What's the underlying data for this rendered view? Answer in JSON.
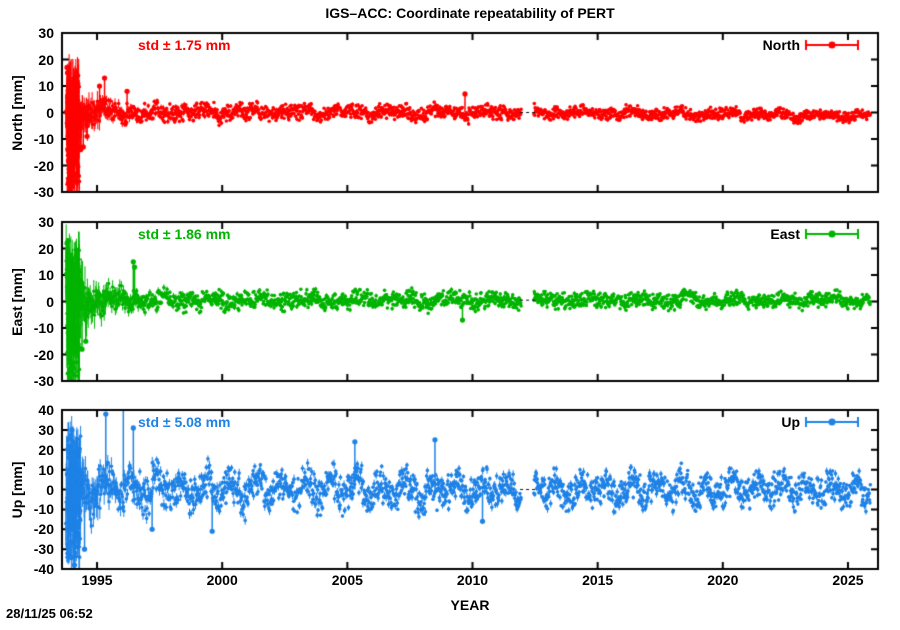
{
  "figure": {
    "title": "IGS–ACC: Coordinate repeatability of PERT",
    "timestamp": "28/11/25 06:52",
    "xlabel": "YEAR",
    "background": "#ffffff",
    "axis_color": "#000000"
  },
  "chart_data": {
    "type": "scatter",
    "title": "IGS–ACC: Coordinate repeatability of PERT",
    "xlabel": "YEAR",
    "x_range": [
      1993.6,
      2026.2
    ],
    "x_ticks": [
      1995,
      2000,
      2005,
      2010,
      2015,
      2020,
      2025
    ],
    "gap": [
      2011.95,
      2012.45
    ],
    "legend_position": "top-right-inside",
    "grid": false,
    "panels": [
      {
        "name": "North",
        "ylabel": "North [mm]",
        "std_label": "std ± 1.75 mm",
        "std_mm": 1.75,
        "color": "#ff0000",
        "ylim": [
          -30,
          30
        ],
        "y_ticks": [
          30,
          20,
          10,
          0,
          -10,
          -20,
          -30
        ],
        "mean_knots": [
          [
            1993.6,
            0
          ],
          [
            2013,
            0
          ],
          [
            2019,
            -0.6
          ],
          [
            2026.2,
            -1.2
          ]
        ],
        "spread_knots": [
          [
            1993.6,
            5
          ],
          [
            1993.9,
            6
          ],
          [
            1994.3,
            3.5
          ],
          [
            1995,
            2.5
          ],
          [
            1997,
            2.0
          ],
          [
            2000,
            1.9
          ],
          [
            2005,
            1.7
          ],
          [
            2010,
            1.6
          ],
          [
            2013,
            1.4
          ],
          [
            2020,
            1.3
          ],
          [
            2026.2,
            1.2
          ]
        ],
        "errbar_knots": [
          [
            1993.6,
            14
          ],
          [
            1994.2,
            10
          ],
          [
            1994.6,
            5
          ],
          [
            1995.5,
            2
          ],
          [
            1997,
            1
          ],
          [
            2000,
            0.7
          ],
          [
            2026.2,
            0.5
          ]
        ],
        "seasonal": {
          "period": 1,
          "amp_knots": [
            [
              1993.6,
              0.6
            ],
            [
              2026.2,
              0.5
            ]
          ]
        },
        "smear": {
          "range": [
            1993.78,
            1994.3
          ],
          "ymin": -28,
          "ymax": 15,
          "count": 160
        },
        "outliers": [
          [
            1993.8,
            17
          ],
          [
            1993.82,
            15
          ],
          [
            1993.9,
            -26
          ],
          [
            1993.95,
            -30
          ],
          [
            1994.0,
            -28
          ],
          [
            1994.05,
            -24
          ],
          [
            1994.15,
            -18
          ],
          [
            1994.35,
            -14
          ],
          [
            1994.45,
            -13
          ],
          [
            1994.6,
            -9
          ],
          [
            1995.1,
            10
          ],
          [
            1995.3,
            13
          ],
          [
            1996.2,
            8
          ],
          [
            2009.7,
            7
          ]
        ]
      },
      {
        "name": "East",
        "ylabel": "East [mm]",
        "std_label": "std ± 1.86 mm",
        "std_mm": 1.86,
        "color": "#00b400",
        "ylim": [
          -30,
          30
        ],
        "y_ticks": [
          30,
          20,
          10,
          0,
          -10,
          -20,
          -30
        ],
        "mean_knots": [
          [
            1993.6,
            0.5
          ],
          [
            2026.2,
            0.5
          ]
        ],
        "spread_knots": [
          [
            1993.6,
            7
          ],
          [
            1993.9,
            8
          ],
          [
            1994.3,
            4.5
          ],
          [
            1995,
            3.0
          ],
          [
            1997,
            2.2
          ],
          [
            2000,
            2.1
          ],
          [
            2005,
            2.0
          ],
          [
            2010,
            1.9
          ],
          [
            2015,
            1.7
          ],
          [
            2026.2,
            1.6
          ]
        ],
        "errbar_knots": [
          [
            1993.6,
            16
          ],
          [
            1994.2,
            12
          ],
          [
            1994.6,
            6
          ],
          [
            1995.5,
            2.5
          ],
          [
            1997,
            1.2
          ],
          [
            2000,
            0.8
          ],
          [
            2026.2,
            0.6
          ]
        ],
        "seasonal": {
          "period": 1,
          "amp_knots": [
            [
              1993.6,
              0.6
            ],
            [
              2026.2,
              0.5
            ]
          ]
        },
        "smear": {
          "range": [
            1993.78,
            1994.3
          ],
          "ymin": -28,
          "ymax": 20,
          "count": 160
        },
        "outliers": [
          [
            1993.8,
            22
          ],
          [
            1993.85,
            23
          ],
          [
            1993.9,
            -28
          ],
          [
            1993.95,
            -30
          ],
          [
            1994.05,
            -25
          ],
          [
            1994.2,
            18
          ],
          [
            1994.4,
            -18
          ],
          [
            1994.55,
            -15
          ],
          [
            1996.45,
            15
          ],
          [
            1996.5,
            13
          ],
          [
            2009.6,
            -7
          ]
        ]
      },
      {
        "name": "Up",
        "ylabel": "Up [mm]",
        "std_label": "std ± 5.08 mm",
        "std_mm": 5.08,
        "color": "#1e82e6",
        "ylim": [
          -40,
          40
        ],
        "y_ticks": [
          40,
          30,
          20,
          10,
          0,
          -10,
          -20,
          -30,
          -40
        ],
        "mean_knots": [
          [
            1993.6,
            0
          ],
          [
            2026.2,
            0
          ]
        ],
        "spread_knots": [
          [
            1993.6,
            9
          ],
          [
            1994.3,
            7.5
          ],
          [
            1995,
            6
          ],
          [
            2000,
            5.5
          ],
          [
            2005,
            5.5
          ],
          [
            2010,
            5
          ],
          [
            2015,
            4.8
          ],
          [
            2026.2,
            4.5
          ]
        ],
        "errbar_knots": [
          [
            1993.6,
            20
          ],
          [
            1994.2,
            14
          ],
          [
            1994.6,
            8
          ],
          [
            1995.5,
            4
          ],
          [
            1997,
            2.5
          ],
          [
            2000,
            2
          ],
          [
            2026.2,
            1.5
          ]
        ],
        "seasonal": {
          "period": 1,
          "amp_knots": [
            [
              1993.6,
              4
            ],
            [
              2000,
              4.5
            ],
            [
              2010,
              4
            ],
            [
              2026.2,
              3.5
            ]
          ]
        },
        "smear": {
          "range": [
            1993.78,
            1994.35
          ],
          "ymin": -36,
          "ymax": 28,
          "count": 160
        },
        "outliers": [
          [
            1994.0,
            30
          ],
          [
            1993.95,
            -34
          ],
          [
            1994.1,
            -38
          ],
          [
            1994.5,
            -30
          ],
          [
            1995.35,
            38
          ],
          [
            1996.05,
            46
          ],
          [
            1996.45,
            31
          ],
          [
            1997.2,
            -20
          ],
          [
            1999.6,
            -21
          ],
          [
            2005.3,
            24
          ],
          [
            2008.5,
            25
          ],
          [
            2010.4,
            -16
          ]
        ]
      }
    ]
  }
}
